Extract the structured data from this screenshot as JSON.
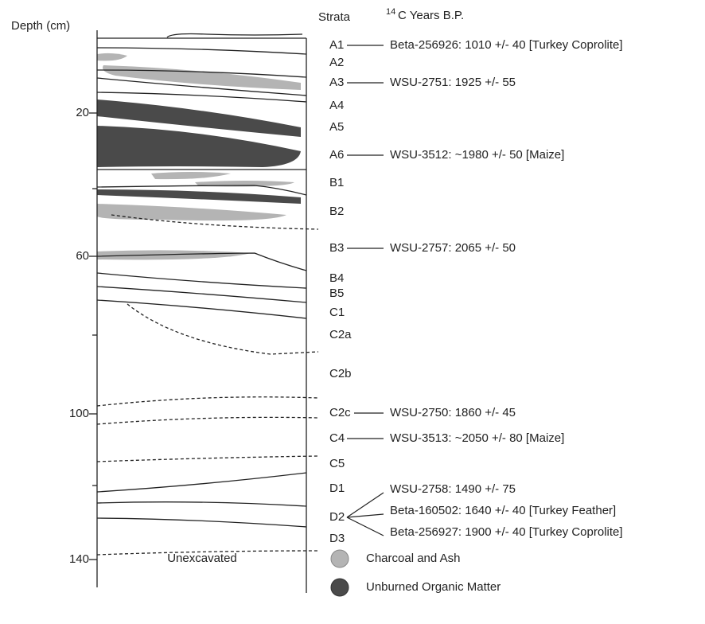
{
  "header": {
    "depth_label": "Depth (cm)",
    "strata_label": "Strata",
    "date_label_superscript": "14",
    "date_label": "C Years B.P."
  },
  "depth_ticks": [
    "20",
    "60",
    "100",
    "140"
  ],
  "strata": [
    {
      "label": "A1",
      "dates": [
        "Beta-256926: 1010 +/- 40 [Turkey Coprolite]"
      ]
    },
    {
      "label": "A2",
      "dates": []
    },
    {
      "label": "A3",
      "dates": [
        "WSU-2751: 1925 +/- 55"
      ]
    },
    {
      "label": "A4",
      "dates": []
    },
    {
      "label": "A5",
      "dates": []
    },
    {
      "label": "A6",
      "dates": [
        "WSU-3512: ~1980 +/- 50 [Maize]"
      ]
    },
    {
      "label": "B1",
      "dates": []
    },
    {
      "label": "B2",
      "dates": []
    },
    {
      "label": "B3",
      "dates": [
        "WSU-2757: 2065 +/- 50"
      ]
    },
    {
      "label": "B4",
      "dates": []
    },
    {
      "label": "B5",
      "dates": []
    },
    {
      "label": "C1",
      "dates": []
    },
    {
      "label": "C2a",
      "dates": []
    },
    {
      "label": "C2b",
      "dates": []
    },
    {
      "label": "C2c",
      "dates": [
        "WSU-2750: 1860 +/- 45"
      ]
    },
    {
      "label": "C4",
      "dates": [
        "WSU-3513: ~2050 +/- 80 [Maize]"
      ]
    },
    {
      "label": "C5",
      "dates": []
    },
    {
      "label": "D1",
      "dates": []
    },
    {
      "label": "D2",
      "dates": [
        "WSU-2758: 1490 +/- 75",
        "Beta-160502: 1640 +/- 40 [Turkey Feather]",
        "Beta-256927: 1900 +/- 40 [Turkey Coprolite]"
      ]
    },
    {
      "label": "D3",
      "dates": []
    }
  ],
  "bottom_label": "Unexcavated",
  "legend": [
    {
      "label": "Charcoal and Ash"
    },
    {
      "label": "Unburned Organic Matter"
    }
  ]
}
